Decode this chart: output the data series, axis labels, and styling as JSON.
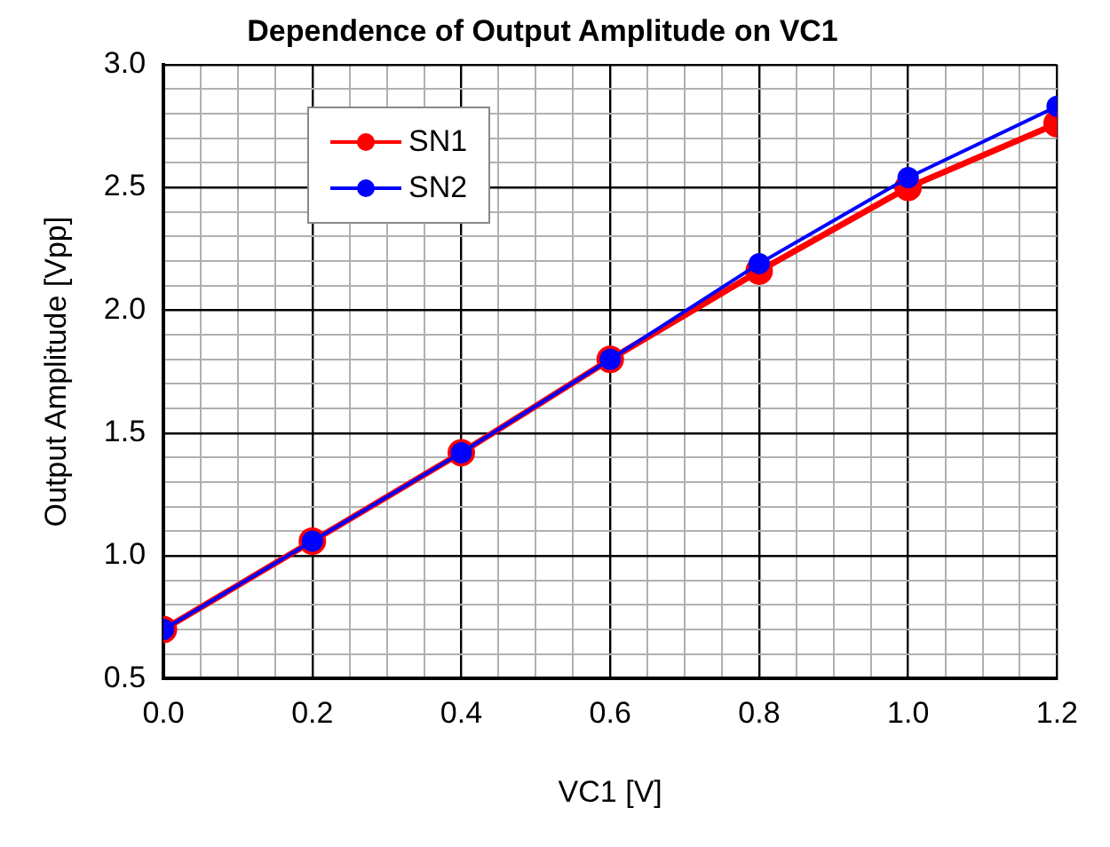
{
  "chart_data": {
    "type": "line",
    "title": "Dependence of Output Amplitude on VC1",
    "xlabel": "VC1 [V]",
    "ylabel": "Output Amplitude [Vpp]",
    "x": [
      0,
      0.2,
      0.4,
      0.6,
      0.8,
      1.0,
      1.2
    ],
    "series": [
      {
        "name": "SN1",
        "color": "#ff0000",
        "values": [
          0.7,
          1.06,
          1.42,
          1.8,
          2.16,
          2.5,
          2.76
        ]
      },
      {
        "name": "SN2",
        "color": "#0000ff",
        "values": [
          0.7,
          1.06,
          1.42,
          1.8,
          2.19,
          2.54,
          2.83
        ]
      }
    ],
    "xlim": [
      0,
      1.2
    ],
    "xticks": [
      {
        "value": 0,
        "label": "0.0"
      },
      {
        "value": 0.05,
        "label": null
      },
      {
        "value": 0.1,
        "label": null
      },
      {
        "value": 0.15,
        "label": null
      },
      {
        "value": 0.2,
        "label": "0.2"
      },
      {
        "value": 0.25,
        "label": null
      },
      {
        "value": 0.3,
        "label": null
      },
      {
        "value": 0.35,
        "label": null
      },
      {
        "value": 0.4,
        "label": "0.4"
      },
      {
        "value": 0.45,
        "label": null
      },
      {
        "value": 0.5,
        "label": null
      },
      {
        "value": 0.55,
        "label": null
      },
      {
        "value": 0.6,
        "label": "0.6"
      },
      {
        "value": 0.65,
        "label": null
      },
      {
        "value": 0.7,
        "label": null
      },
      {
        "value": 0.75,
        "label": null
      },
      {
        "value": 0.8,
        "label": "0.8"
      },
      {
        "value": 0.85,
        "label": null
      },
      {
        "value": 0.9,
        "label": null
      },
      {
        "value": 0.95,
        "label": null
      },
      {
        "value": 1.0,
        "label": "1.0"
      },
      {
        "value": 1.05,
        "label": null
      },
      {
        "value": 1.1,
        "label": null
      },
      {
        "value": 1.15,
        "label": null
      },
      {
        "value": 1.2,
        "label": "1.2"
      }
    ],
    "ylim": [
      0.5,
      3.0
    ],
    "yticks": [
      {
        "value": 0.5,
        "label": "0.5"
      },
      {
        "value": 0.6,
        "label": null
      },
      {
        "value": 0.7,
        "label": null
      },
      {
        "value": 0.8,
        "label": null
      },
      {
        "value": 0.9,
        "label": null
      },
      {
        "value": 1.0,
        "label": "1.0"
      },
      {
        "value": 1.1,
        "label": null
      },
      {
        "value": 1.2,
        "label": null
      },
      {
        "value": 1.3,
        "label": null
      },
      {
        "value": 1.4,
        "label": null
      },
      {
        "value": 1.5,
        "label": "1.5"
      },
      {
        "value": 1.6,
        "label": null
      },
      {
        "value": 1.7,
        "label": null
      },
      {
        "value": 1.8,
        "label": null
      },
      {
        "value": 1.9,
        "label": null
      },
      {
        "value": 2.0,
        "label": "2.0"
      },
      {
        "value": 2.1,
        "label": null
      },
      {
        "value": 2.2,
        "label": null
      },
      {
        "value": 2.3,
        "label": null
      },
      {
        "value": 2.4,
        "label": null
      },
      {
        "value": 2.5,
        "label": "2.5"
      },
      {
        "value": 2.6,
        "label": null
      },
      {
        "value": 2.7,
        "label": null
      },
      {
        "value": 2.8,
        "label": null
      },
      {
        "value": 2.9,
        "label": null
      },
      {
        "value": 3.0,
        "label": "3.0"
      }
    ],
    "grid": true,
    "legend": "top left",
    "marker": "circle",
    "line_style": "solid"
  }
}
